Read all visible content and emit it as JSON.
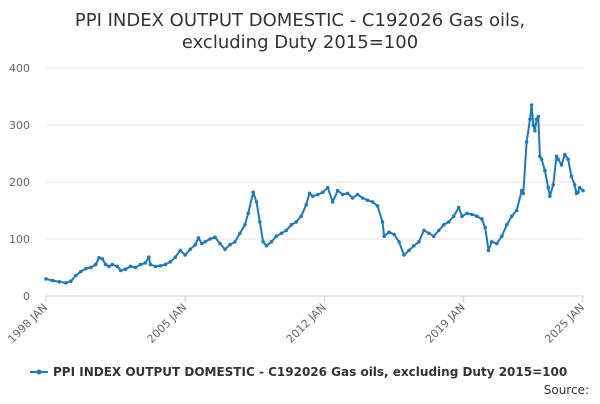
{
  "chart_data": {
    "type": "line",
    "title_lines": [
      "PPI INDEX OUTPUT DOMESTIC - C192026 Gas oils,",
      "excluding Duty 2015=100"
    ],
    "xlabel": "",
    "ylabel": "",
    "ylim": [
      0,
      400
    ],
    "yticks": [
      "0",
      "100",
      "200",
      "300",
      "400"
    ],
    "xlim": [
      "1998-01",
      "2025-01"
    ],
    "xticks": [
      {
        "date": "1998-01",
        "label": "1998 JAN"
      },
      {
        "date": "2005-01",
        "label": "2005 JAN"
      },
      {
        "date": "2012-01",
        "label": "2012 JAN"
      },
      {
        "date": "2019-01",
        "label": "2019 JAN"
      },
      {
        "date": "2025-01",
        "label": "2025 JAN"
      }
    ],
    "grid": "horizontal",
    "legend_position": "bottom",
    "colors": {
      "series": "#1f7ab8",
      "grid": "#e6e6e6",
      "axis": "#cccccc"
    },
    "source_label": "Source:",
    "series": [
      {
        "name": "PPI INDEX OUTPUT DOMESTIC - C192026 Gas oils, excluding Duty 2015=100",
        "points": [
          [
            "1998-01",
            30
          ],
          [
            "1998-05",
            27
          ],
          [
            "1998-09",
            25
          ],
          [
            "1999-01",
            23
          ],
          [
            "1999-04",
            26
          ],
          [
            "1999-07",
            36
          ],
          [
            "1999-10",
            43
          ],
          [
            "2000-01",
            48
          ],
          [
            "2000-04",
            50
          ],
          [
            "2000-07",
            55
          ],
          [
            "2000-09",
            67
          ],
          [
            "2000-11",
            65
          ],
          [
            "2001-01",
            55
          ],
          [
            "2001-03",
            52
          ],
          [
            "2001-05",
            55
          ],
          [
            "2001-08",
            52
          ],
          [
            "2001-10",
            45
          ],
          [
            "2002-01",
            47
          ],
          [
            "2002-04",
            52
          ],
          [
            "2002-07",
            50
          ],
          [
            "2002-10",
            55
          ],
          [
            "2003-01",
            58
          ],
          [
            "2003-03",
            68
          ],
          [
            "2003-04",
            55
          ],
          [
            "2003-07",
            52
          ],
          [
            "2003-10",
            53
          ],
          [
            "2004-01",
            55
          ],
          [
            "2004-04",
            60
          ],
          [
            "2004-07",
            68
          ],
          [
            "2004-10",
            80
          ],
          [
            "2005-01",
            72
          ],
          [
            "2005-04",
            82
          ],
          [
            "2005-07",
            90
          ],
          [
            "2005-09",
            102
          ],
          [
            "2005-11",
            92
          ],
          [
            "2006-01",
            95
          ],
          [
            "2006-04",
            100
          ],
          [
            "2006-07",
            103
          ],
          [
            "2006-10",
            92
          ],
          [
            "2007-01",
            82
          ],
          [
            "2007-04",
            90
          ],
          [
            "2007-07",
            95
          ],
          [
            "2007-10",
            110
          ],
          [
            "2008-01",
            125
          ],
          [
            "2008-03",
            145
          ],
          [
            "2008-06",
            182
          ],
          [
            "2008-08",
            165
          ],
          [
            "2008-10",
            130
          ],
          [
            "2008-12",
            95
          ],
          [
            "2009-02",
            88
          ],
          [
            "2009-05",
            95
          ],
          [
            "2009-08",
            105
          ],
          [
            "2009-11",
            110
          ],
          [
            "2010-02",
            115
          ],
          [
            "2010-05",
            125
          ],
          [
            "2010-08",
            130
          ],
          [
            "2010-11",
            140
          ],
          [
            "2011-02",
            160
          ],
          [
            "2011-04",
            180
          ],
          [
            "2011-06",
            175
          ],
          [
            "2011-09",
            178
          ],
          [
            "2011-12",
            182
          ],
          [
            "2012-03",
            190
          ],
          [
            "2012-06",
            165
          ],
          [
            "2012-09",
            185
          ],
          [
            "2012-12",
            178
          ],
          [
            "2013-03",
            180
          ],
          [
            "2013-06",
            172
          ],
          [
            "2013-09",
            178
          ],
          [
            "2013-12",
            172
          ],
          [
            "2014-03",
            168
          ],
          [
            "2014-06",
            165
          ],
          [
            "2014-09",
            158
          ],
          [
            "2014-12",
            130
          ],
          [
            "2015-01",
            105
          ],
          [
            "2015-04",
            112
          ],
          [
            "2015-07",
            108
          ],
          [
            "2015-10",
            95
          ],
          [
            "2016-01",
            72
          ],
          [
            "2016-04",
            80
          ],
          [
            "2016-07",
            88
          ],
          [
            "2016-10",
            95
          ],
          [
            "2017-01",
            115
          ],
          [
            "2017-04",
            110
          ],
          [
            "2017-07",
            105
          ],
          [
            "2017-10",
            115
          ],
          [
            "2018-01",
            125
          ],
          [
            "2018-04",
            130
          ],
          [
            "2018-07",
            140
          ],
          [
            "2018-10",
            155
          ],
          [
            "2018-12",
            140
          ],
          [
            "2019-03",
            145
          ],
          [
            "2019-06",
            143
          ],
          [
            "2019-09",
            140
          ],
          [
            "2019-12",
            135
          ],
          [
            "2020-02",
            120
          ],
          [
            "2020-04",
            80
          ],
          [
            "2020-06",
            95
          ],
          [
            "2020-09",
            92
          ],
          [
            "2020-12",
            105
          ],
          [
            "2021-03",
            125
          ],
          [
            "2021-06",
            140
          ],
          [
            "2021-09",
            150
          ],
          [
            "2021-12",
            185
          ],
          [
            "2022-01",
            180
          ],
          [
            "2022-03",
            270
          ],
          [
            "2022-05",
            310
          ],
          [
            "2022-06",
            335
          ],
          [
            "2022-07",
            300
          ],
          [
            "2022-08",
            290
          ],
          [
            "2022-09",
            310
          ],
          [
            "2022-10",
            315
          ],
          [
            "2022-11",
            245
          ],
          [
            "2022-12",
            240
          ],
          [
            "2023-02",
            220
          ],
          [
            "2023-04",
            190
          ],
          [
            "2023-05",
            175
          ],
          [
            "2023-07",
            195
          ],
          [
            "2023-09",
            245
          ],
          [
            "2023-10",
            240
          ],
          [
            "2023-12",
            230
          ],
          [
            "2024-02",
            248
          ],
          [
            "2024-04",
            240
          ],
          [
            "2024-06",
            210
          ],
          [
            "2024-08",
            195
          ],
          [
            "2024-09",
            180
          ],
          [
            "2024-10",
            182
          ],
          [
            "2024-11",
            190
          ],
          [
            "2025-01",
            185
          ]
        ]
      }
    ]
  }
}
